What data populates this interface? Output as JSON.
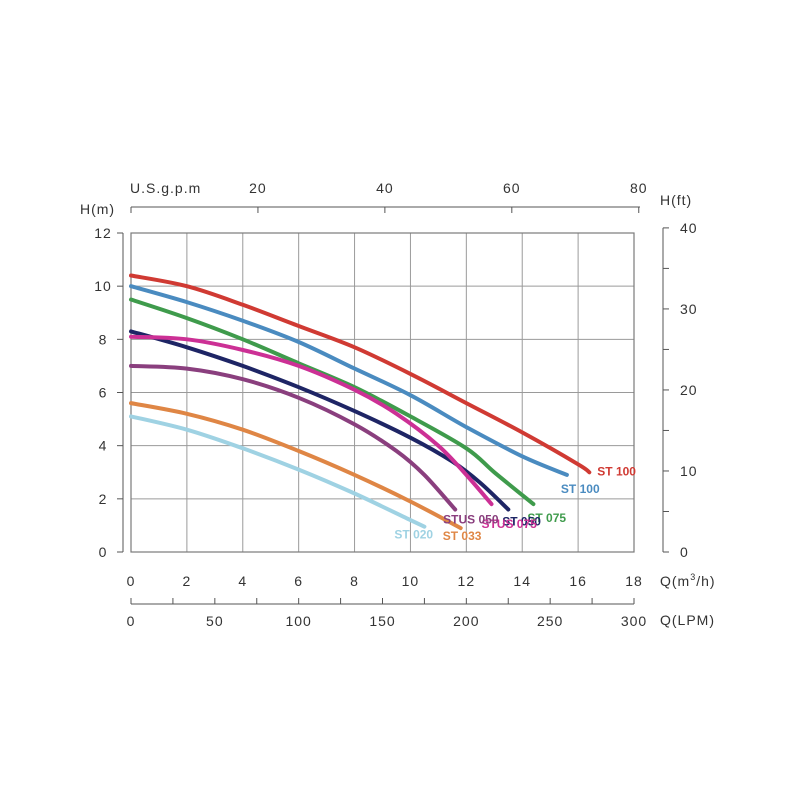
{
  "chart_data": {
    "type": "line",
    "title": "",
    "xlabel": "Q(m³/h)",
    "xlabel_base": "Q(m",
    "xlabel_sup": "3",
    "xlabel_tail": "/h)",
    "ylabel": "H(m)",
    "xlim": [
      0,
      18
    ],
    "ylim": [
      0,
      12
    ],
    "grid": true,
    "x_ticks": [
      "0",
      "2",
      "4",
      "6",
      "8",
      "10",
      "12",
      "14",
      "16",
      "18"
    ],
    "y_ticks": [
      "0",
      "2",
      "4",
      "6",
      "8",
      "10",
      "12"
    ],
    "secondary_axes": {
      "top": {
        "label": "U.S.g.p.m",
        "ticks": [
          "20",
          "40",
          "60",
          "80"
        ]
      },
      "right": {
        "label": "H(ft)",
        "ticks": [
          "0",
          "10",
          "20",
          "30",
          "40"
        ]
      },
      "bottom2": {
        "label": "Q(LPM)",
        "ticks": [
          "0",
          "50",
          "100",
          "150",
          "200",
          "250",
          "300"
        ]
      }
    },
    "series": [
      {
        "name": "ST 100",
        "color": "#d03a33",
        "x": [
          0,
          2,
          4,
          6,
          8,
          10,
          12,
          14,
          16,
          16.4
        ],
        "y": [
          10.4,
          10.0,
          9.3,
          8.5,
          7.7,
          6.7,
          5.6,
          4.5,
          3.3,
          3.0
        ]
      },
      {
        "name": "ST 100",
        "color": "#4a8bc0",
        "x": [
          0,
          2,
          4,
          6,
          8,
          10,
          12,
          14,
          15.6
        ],
        "y": [
          10.0,
          9.4,
          8.7,
          7.9,
          6.9,
          5.9,
          4.7,
          3.6,
          2.9
        ]
      },
      {
        "name": "ST 075",
        "color": "#3f9b4c",
        "x": [
          0,
          2,
          4,
          6,
          8,
          10,
          12,
          13,
          14.4
        ],
        "y": [
          9.5,
          8.8,
          8.0,
          7.1,
          6.2,
          5.1,
          3.9,
          3.0,
          1.8
        ]
      },
      {
        "name": "ST 050",
        "color": "#1e2565",
        "x": [
          0,
          2,
          4,
          6,
          8,
          10,
          11.5,
          12.5,
          13.5
        ],
        "y": [
          8.3,
          7.7,
          7.0,
          6.2,
          5.3,
          4.3,
          3.4,
          2.6,
          1.6
        ]
      },
      {
        "name": "STUS 075",
        "color": "#cc3095",
        "x": [
          0,
          2,
          4,
          6,
          8,
          9.5,
          11,
          12,
          12.9
        ],
        "y": [
          8.1,
          8.0,
          7.6,
          7.0,
          6.1,
          5.2,
          4.0,
          2.9,
          1.8
        ]
      },
      {
        "name": "STUS 050",
        "color": "#8a3f7e",
        "x": [
          0,
          2,
          4,
          6,
          8,
          9.5,
          10.5,
          11.6
        ],
        "y": [
          7.0,
          6.9,
          6.5,
          5.8,
          4.8,
          3.8,
          2.9,
          1.6
        ]
      },
      {
        "name": "ST 033",
        "color": "#df8645",
        "x": [
          0,
          2,
          4,
          6,
          8,
          10,
          11.8
        ],
        "y": [
          5.6,
          5.2,
          4.6,
          3.8,
          2.9,
          1.9,
          0.9
        ]
      },
      {
        "name": "ST 020",
        "color": "#9fd2e3",
        "x": [
          0,
          2,
          4,
          6,
          8,
          10,
          10.5
        ],
        "y": [
          5.1,
          4.6,
          3.9,
          3.1,
          2.2,
          1.2,
          0.95
        ]
      }
    ]
  }
}
